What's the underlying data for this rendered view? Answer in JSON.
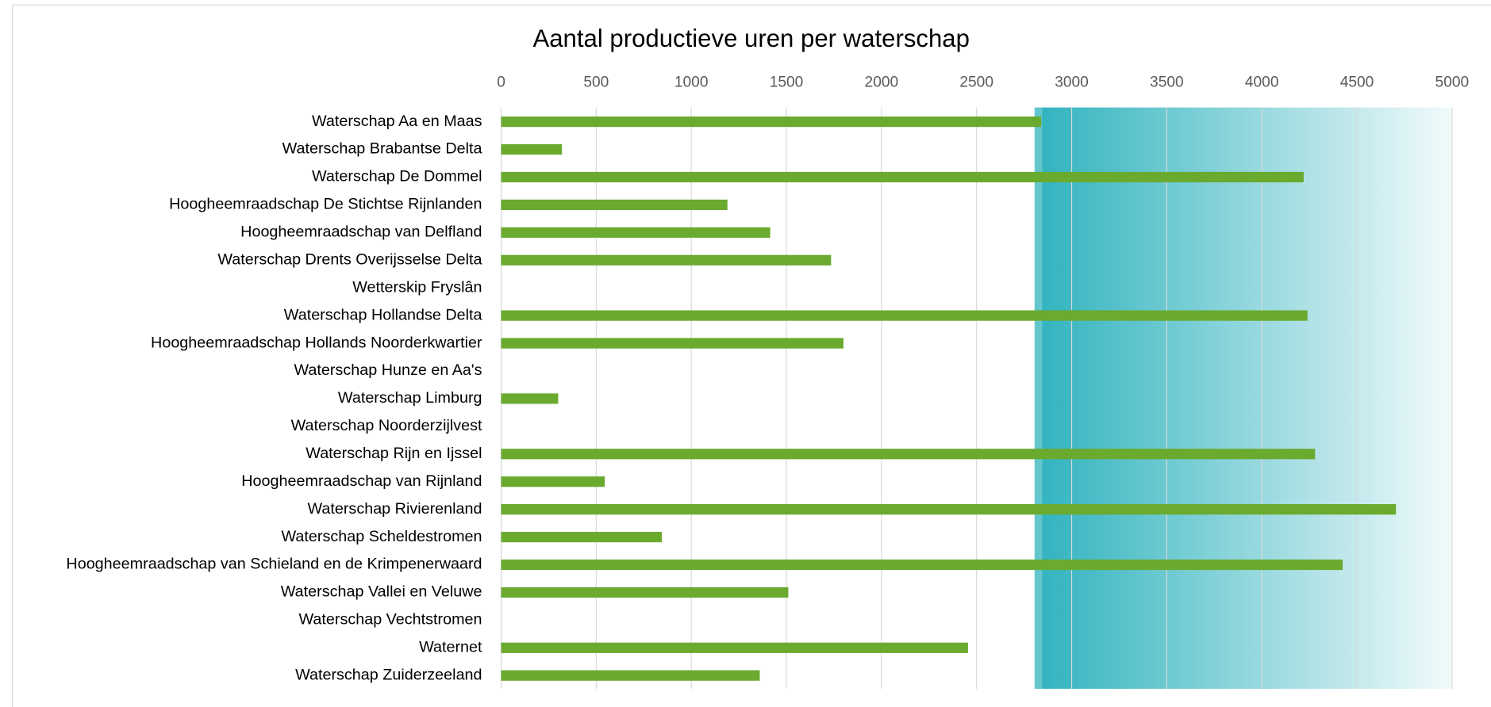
{
  "chart_data": {
    "type": "hbar",
    "title": "Aantal productieve uren per waterschap",
    "categories": [
      "Waterschap Aa en Maas",
      "Waterschap Brabantse Delta",
      "Waterschap De Dommel",
      "Hoogheemraadschap De Stichtse Rijnlanden",
      "Hoogheemraadschap van Delfland",
      "Waterschap Drents Overijsselse Delta",
      "Wetterskip Fryslân",
      "Waterschap Hollandse Delta",
      "Hoogheemraadschap Hollands Noorderkwartier",
      "Waterschap Hunze en Aa's",
      "Waterschap Limburg",
      "Waterschap Noorderzijlvest",
      "Waterschap Rijn en Ijssel",
      "Hoogheemraadschap van Rijnland",
      "Waterschap Rivierenland",
      "Waterschap Scheldestromen",
      "Hoogheemraadschap van Schieland en de Krimpenerwaard",
      "Waterschap Vallei en Veluwe",
      "Waterschap Vechtstromen",
      "Waternet",
      "Waterschap Zuiderzeeland"
    ],
    "values": [
      2840,
      320,
      4220,
      1190,
      1415,
      1735,
      null,
      4240,
      1800,
      null,
      300,
      null,
      4280,
      545,
      4705,
      845,
      4425,
      1510,
      null,
      2455,
      1360
    ],
    "color": "#6aaa2f",
    "xlim": [
      0,
      5000
    ],
    "xticks": [
      0,
      500,
      1000,
      1500,
      2000,
      2500,
      3000,
      3500,
      4000,
      4500,
      5000
    ],
    "grid": true,
    "shaded_range": [
      2805,
      5000
    ]
  }
}
